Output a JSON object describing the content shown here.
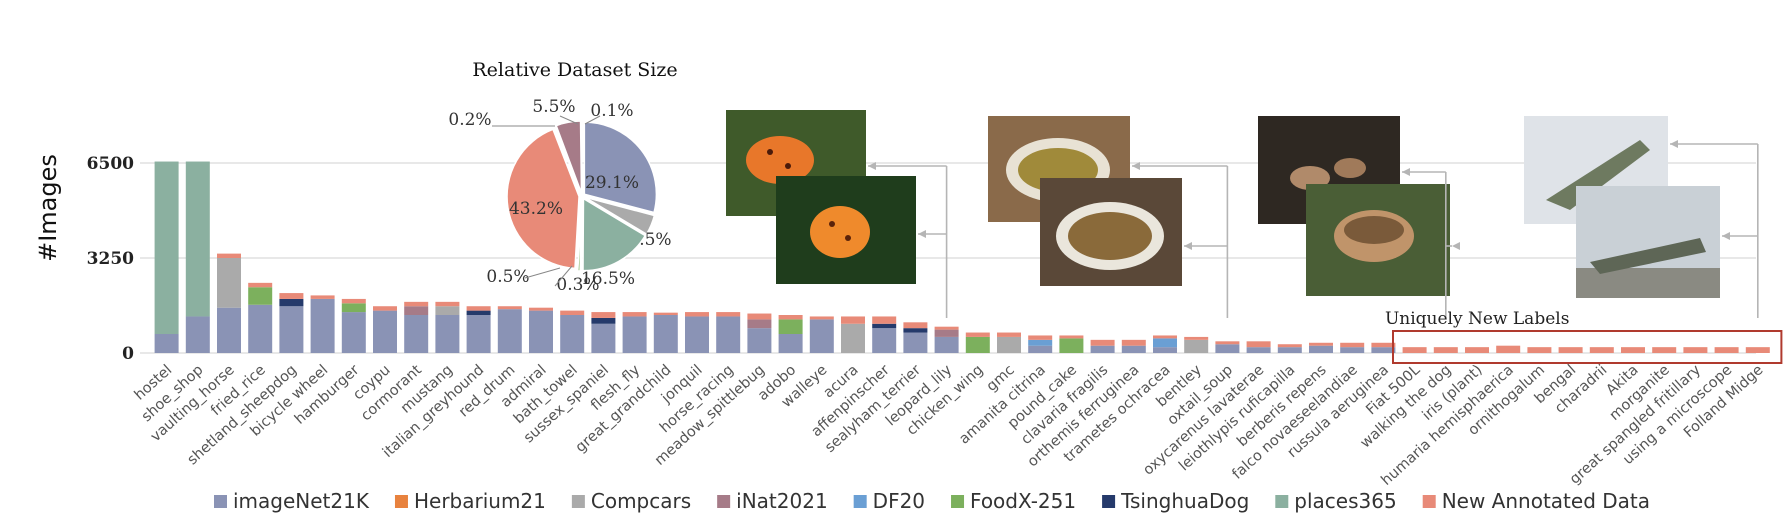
{
  "chart_data": {
    "type": "bar",
    "stacked": true,
    "ylabel": "#Images",
    "yticks": [
      0,
      3250,
      6500
    ],
    "ylim": [
      0,
      6500
    ],
    "grid": true,
    "legend_position": "bottom",
    "categories": [
      "hostel",
      "shoe_shop",
      "vaulting_horse",
      "fried_rice",
      "shetland_sheepdog",
      "bicycle wheel",
      "hamburger",
      "coypu",
      "cormorant",
      "mustang",
      "italian_greyhound",
      "red_drum",
      "admiral",
      "bath_towel",
      "sussex_spaniel",
      "flesh_fly",
      "great_grandchild",
      "jonquil",
      "horse_racing",
      "meadow_spittlebug",
      "adobo",
      "walleye",
      "acura",
      "affenpinscher",
      "sealyham_terrier",
      "leopard_lily",
      "chicken_wing",
      "gmc",
      "amanita citrina",
      "pound_cake",
      "clavaria fragilis",
      "orthemis ferruginea",
      "trametes ochracea",
      "bentley",
      "oxtail_soup",
      "oxycarenus lavaterae",
      "leiothlypis ruficapilla",
      "berberis repens",
      "falco novaeseelandiae",
      "russula aeruginea",
      "Fiat 500L",
      "walking the dog",
      "iris (plant)",
      "humaria hemisphaerica",
      "ornithogalum",
      "bengal",
      "charadrii",
      "Akita",
      "morganite",
      "great spangled fritillary",
      "using a microscope",
      "Folland Midge"
    ],
    "series": [
      {
        "name": "imageNet21K",
        "color": "#8a93b5",
        "values": [
          650,
          1250,
          1550,
          1650,
          1600,
          1850,
          1400,
          1450,
          1300,
          1300,
          1300,
          1500,
          1450,
          1300,
          1000,
          1250,
          1300,
          1250,
          1250,
          850,
          650,
          1150,
          0,
          850,
          700,
          550,
          0,
          0,
          250,
          0,
          250,
          250,
          200,
          0,
          300,
          200,
          200,
          250,
          200,
          200,
          0,
          0,
          0,
          0,
          0,
          0,
          0,
          0,
          0,
          0,
          0,
          0
        ]
      },
      {
        "name": "Herbarium21",
        "color": "#e8823e",
        "values": [
          0,
          0,
          0,
          0,
          0,
          0,
          0,
          0,
          0,
          0,
          0,
          0,
          0,
          0,
          0,
          0,
          0,
          0,
          0,
          0,
          0,
          0,
          0,
          0,
          0,
          0,
          0,
          0,
          0,
          0,
          0,
          0,
          0,
          0,
          0,
          0,
          0,
          0,
          0,
          0,
          0,
          0,
          0,
          0,
          0,
          0,
          0,
          0,
          0,
          0,
          0,
          0
        ]
      },
      {
        "name": "Compcars",
        "color": "#aaaaaa",
        "values": [
          0,
          0,
          1700,
          0,
          0,
          0,
          0,
          0,
          0,
          300,
          0,
          0,
          0,
          0,
          0,
          0,
          0,
          0,
          0,
          0,
          0,
          0,
          1000,
          0,
          0,
          0,
          0,
          550,
          0,
          0,
          0,
          0,
          0,
          450,
          0,
          0,
          0,
          0,
          0,
          0,
          0,
          0,
          0,
          0,
          0,
          0,
          0,
          0,
          0,
          0,
          0,
          0
        ]
      },
      {
        "name": "iNat2021",
        "color": "#a67b88",
        "values": [
          0,
          0,
          0,
          0,
          0,
          0,
          0,
          0,
          300,
          0,
          0,
          0,
          0,
          0,
          0,
          0,
          0,
          0,
          0,
          300,
          0,
          0,
          0,
          0,
          0,
          250,
          0,
          0,
          0,
          0,
          0,
          0,
          0,
          0,
          0,
          0,
          0,
          0,
          0,
          0,
          0,
          0,
          0,
          0,
          0,
          0,
          0,
          0,
          0,
          0,
          0,
          0
        ]
      },
      {
        "name": "DF20",
        "color": "#6a9fd4",
        "values": [
          0,
          0,
          0,
          0,
          0,
          0,
          0,
          0,
          0,
          0,
          0,
          0,
          0,
          0,
          0,
          0,
          0,
          0,
          0,
          0,
          0,
          0,
          0,
          0,
          0,
          0,
          0,
          0,
          200,
          0,
          0,
          0,
          300,
          0,
          0,
          0,
          0,
          0,
          0,
          0,
          0,
          0,
          0,
          0,
          0,
          0,
          0,
          0,
          0,
          0,
          0,
          0
        ]
      },
      {
        "name": "FoodX-251",
        "color": "#7cb05d",
        "values": [
          0,
          0,
          0,
          600,
          0,
          0,
          300,
          0,
          0,
          0,
          0,
          0,
          0,
          0,
          0,
          0,
          0,
          0,
          0,
          0,
          500,
          0,
          0,
          0,
          0,
          0,
          550,
          0,
          0,
          500,
          0,
          0,
          0,
          0,
          0,
          0,
          0,
          0,
          0,
          0,
          0,
          0,
          0,
          0,
          0,
          0,
          0,
          0,
          0,
          0,
          0,
          0
        ]
      },
      {
        "name": "TsinghuaDog",
        "color": "#253a6b",
        "values": [
          0,
          0,
          0,
          0,
          250,
          0,
          0,
          0,
          0,
          0,
          150,
          0,
          0,
          0,
          200,
          0,
          0,
          0,
          0,
          0,
          0,
          0,
          0,
          150,
          150,
          0,
          0,
          0,
          0,
          0,
          0,
          0,
          0,
          0,
          0,
          0,
          0,
          0,
          0,
          0,
          0,
          0,
          0,
          0,
          0,
          0,
          0,
          0,
          0,
          0,
          0,
          0
        ]
      },
      {
        "name": "places365",
        "color": "#8bb0a0",
        "values": [
          5900,
          5300,
          0,
          0,
          0,
          0,
          0,
          0,
          0,
          0,
          0,
          0,
          0,
          0,
          0,
          0,
          0,
          0,
          0,
          0,
          0,
          0,
          0,
          0,
          0,
          0,
          0,
          0,
          0,
          0,
          0,
          0,
          0,
          0,
          0,
          0,
          0,
          0,
          0,
          0,
          0,
          0,
          0,
          0,
          0,
          0,
          0,
          0,
          0,
          0,
          0,
          0
        ]
      },
      {
        "name": "New Annotated Data",
        "color": "#e88a78",
        "values": [
          0,
          0,
          150,
          150,
          200,
          120,
          150,
          150,
          150,
          150,
          150,
          100,
          100,
          150,
          200,
          150,
          80,
          150,
          150,
          200,
          150,
          100,
          250,
          250,
          200,
          100,
          150,
          150,
          150,
          100,
          200,
          200,
          100,
          100,
          100,
          200,
          100,
          100,
          150,
          150,
          200,
          200,
          200,
          250,
          200,
          200,
          200,
          200,
          200,
          200,
          200,
          200
        ]
      }
    ],
    "inset_pie": {
      "type": "pie",
      "title": "Relative Dataset Size",
      "slices": [
        {
          "name": "imageNet21K",
          "pct": 29.1,
          "label": "29.1%",
          "color": "#8a93b5"
        },
        {
          "name": "Compcars",
          "pct": 4.5,
          "label": "4.5%",
          "color": "#aaaaaa"
        },
        {
          "name": "places365",
          "pct": 16.5,
          "label": "16.5%",
          "color": "#8bb0a0"
        },
        {
          "name": "TsinghuaDog",
          "pct": 0.3,
          "label": "0.3%",
          "color": "#253a6b"
        },
        {
          "name": "FoodX-251",
          "pct": 0.5,
          "label": "0.5%",
          "color": "#7cb05d"
        },
        {
          "name": "New Annotated Data",
          "pct": 43.2,
          "label": "43.2%",
          "color": "#e88a78"
        },
        {
          "name": "DF20",
          "pct": 0.2,
          "label": "0.2%",
          "color": "#6a9fd4"
        },
        {
          "name": "iNat2021",
          "pct": 5.5,
          "label": "5.5%",
          "color": "#a67b88"
        },
        {
          "name": "Herbarium21",
          "pct": 0.1,
          "label": "0.1%",
          "color": "#e8823e"
        }
      ]
    },
    "annotations": {
      "unique_box_label": "Uniquely New Labels",
      "unique_box_color": "#b03a2e",
      "unique_box_range": [
        "Fiat 500L",
        "Folland Midge"
      ]
    }
  }
}
